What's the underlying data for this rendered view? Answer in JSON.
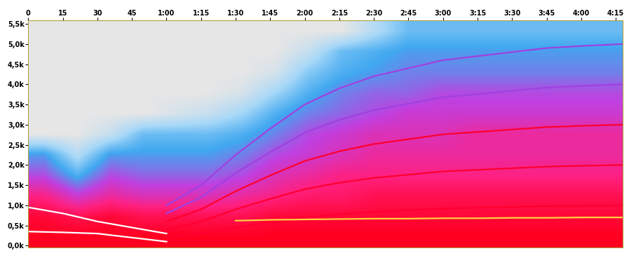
{
  "chart_data": {
    "type": "heatmap",
    "xlim": [
      0,
      258
    ],
    "ylim": [
      -50,
      5580
    ],
    "xticks": [
      0,
      15,
      30,
      45,
      {
        "value": 60,
        "label": "1:00"
      },
      {
        "value": 75,
        "label": "1:15"
      },
      {
        "value": 90,
        "label": "1:30"
      },
      {
        "value": 105,
        "label": "1:45"
      },
      {
        "value": 120,
        "label": "2:00"
      },
      {
        "value": 135,
        "label": "2:15"
      },
      {
        "value": 150,
        "label": "2:30"
      },
      {
        "value": 165,
        "label": "2:45"
      },
      {
        "value": 180,
        "label": "3:00"
      },
      {
        "value": 195,
        "label": "3:15"
      },
      {
        "value": 210,
        "label": "3:30"
      },
      {
        "value": 225,
        "label": "3:45"
      },
      {
        "value": 240,
        "label": "4:00"
      },
      {
        "value": 255,
        "label": "4:15"
      }
    ],
    "yticks": [
      {
        "value": 0,
        "label": "0,0k"
      },
      {
        "value": 500,
        "label": "0,5k"
      },
      {
        "value": 1000,
        "label": "1,0k"
      },
      {
        "value": 1500,
        "label": "1,5k"
      },
      {
        "value": 2000,
        "label": "2,0k"
      },
      {
        "value": 2500,
        "label": "2,5k"
      },
      {
        "value": 3000,
        "label": "3,0k"
      },
      {
        "value": 3500,
        "label": "3,5k"
      },
      {
        "value": 4000,
        "label": "4,0k"
      },
      {
        "value": 4500,
        "label": "4,5k"
      },
      {
        "value": 5000,
        "label": "5,0k"
      },
      {
        "value": 5500,
        "label": "5,5k"
      }
    ],
    "grid": false,
    "cells": [
      [
        0.95,
        0.95,
        0.95,
        0.95,
        0.95,
        0.95,
        0.95,
        0.95,
        0.95,
        0.95,
        0.95,
        0.95,
        0.95,
        0.95,
        0.95,
        0.95,
        0.95,
        0.95
      ],
      [
        0.9,
        0.85,
        0.9,
        0.85,
        0.85,
        0.85,
        0.85,
        0.9,
        0.9,
        0.9,
        0.9,
        0.9,
        0.9,
        0.9,
        0.9,
        0.9,
        0.9,
        0.9
      ],
      [
        0.75,
        0.6,
        0.7,
        0.65,
        0.65,
        0.65,
        0.7,
        0.75,
        0.8,
        0.8,
        0.85,
        0.85,
        0.85,
        0.85,
        0.85,
        0.85,
        0.85,
        0.85
      ],
      [
        0.55,
        0.35,
        0.55,
        0.5,
        0.5,
        0.5,
        0.55,
        0.65,
        0.7,
        0.75,
        0.75,
        0.75,
        0.75,
        0.75,
        0.75,
        0.75,
        0.75,
        0.75
      ],
      [
        0.4,
        0.15,
        0.4,
        0.4,
        0.4,
        0.4,
        0.45,
        0.55,
        0.6,
        0.65,
        0.7,
        0.7,
        0.7,
        0.7,
        0.7,
        0.7,
        0.7,
        0.7
      ],
      [
        0,
        0,
        0.1,
        0.3,
        0.3,
        0.3,
        0.35,
        0.45,
        0.55,
        0.6,
        0.65,
        0.65,
        0.65,
        0.7,
        0.7,
        0.7,
        0.7,
        0.7
      ],
      [
        0,
        0,
        0,
        0,
        0.05,
        0.1,
        0.2,
        0.35,
        0.45,
        0.5,
        0.55,
        0.6,
        0.6,
        0.6,
        0.6,
        0.6,
        0.6,
        0.6
      ],
      [
        0,
        0,
        0,
        0,
        0,
        0,
        0.05,
        0.2,
        0.35,
        0.45,
        0.5,
        0.5,
        0.55,
        0.55,
        0.55,
        0.55,
        0.55,
        0.55
      ],
      [
        0,
        0,
        0,
        0,
        0,
        0,
        0,
        0.05,
        0.25,
        0.35,
        0.4,
        0.45,
        0.45,
        0.45,
        0.45,
        0.45,
        0.45,
        0.45
      ],
      [
        0,
        0,
        0,
        0,
        0,
        0,
        0,
        0,
        0.1,
        0.3,
        0.35,
        0.4,
        0.4,
        0.4,
        0.4,
        0.4,
        0.4,
        0.4
      ],
      [
        0,
        0,
        0,
        0,
        0,
        0,
        0,
        0,
        0,
        0,
        0.15,
        0.3,
        0.3,
        0.3,
        0.3,
        0.3,
        0.3,
        0.3
      ]
    ],
    "x": [
      0,
      15,
      30,
      45,
      60,
      75,
      90,
      105,
      120,
      135,
      150,
      165,
      180,
      195,
      210,
      225,
      240,
      258
    ],
    "series": [
      {
        "type": "line",
        "color": "#ff0030",
        "values": [
          null,
          null,
          null,
          null,
          200,
          300,
          450,
          580,
          700,
          780,
          840,
          880,
          920,
          940,
          960,
          980,
          990,
          1000
        ]
      },
      {
        "type": "line",
        "color": "#ff0030",
        "values": [
          null,
          null,
          null,
          null,
          400,
          600,
          900,
          1160,
          1400,
          1560,
          1680,
          1760,
          1840,
          1880,
          1920,
          1960,
          1980,
          2000
        ]
      },
      {
        "type": "line",
        "color": "#ff0030",
        "values": [
          null,
          null,
          null,
          null,
          600,
          900,
          1350,
          1740,
          2100,
          2340,
          2520,
          2640,
          2760,
          2820,
          2880,
          2940,
          2970,
          3000
        ]
      },
      {
        "type": "line",
        "color": "#a040e0",
        "values": [
          null,
          null,
          null,
          null,
          800,
          1200,
          1800,
          2320,
          2800,
          3120,
          3360,
          3520,
          3680,
          3760,
          3840,
          3920,
          3960,
          4000
        ]
      },
      {
        "type": "line",
        "color": "#a040e0",
        "values": [
          null,
          null,
          null,
          null,
          1000,
          1500,
          2250,
          2900,
          3500,
          3900,
          4200,
          4400,
          4600,
          4700,
          4800,
          4900,
          4950,
          5000
        ]
      },
      {
        "type": "line",
        "color": "#ffffff",
        "values": [
          950,
          800,
          600,
          450,
          300,
          null,
          null,
          null,
          null,
          null,
          null,
          null,
          null,
          null,
          null,
          null,
          null,
          null
        ]
      },
      {
        "type": "line",
        "color": "#ffffff",
        "values": [
          350,
          330,
          300,
          200,
          100,
          null,
          null,
          null,
          null,
          null,
          null,
          null,
          null,
          null,
          null,
          null,
          null,
          null
        ]
      },
      {
        "type": "line",
        "color": "#ffd040",
        "values": [
          null,
          null,
          null,
          null,
          null,
          null,
          620,
          640,
          650,
          660,
          670,
          670,
          680,
          680,
          690,
          690,
          700,
          700
        ]
      }
    ]
  }
}
